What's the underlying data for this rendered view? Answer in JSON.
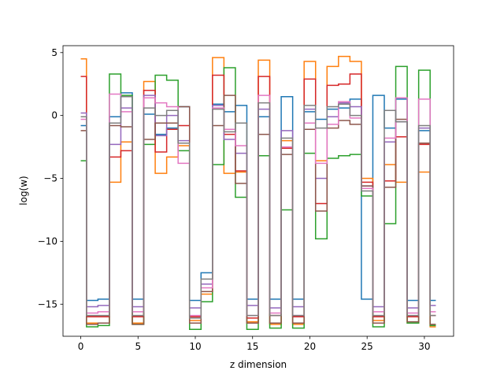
{
  "chart_data": {
    "type": "line",
    "step": "mid",
    "xlabel": "z dimension",
    "ylabel": "log(w)",
    "xlim": [
      -1.55,
      32.55
    ],
    "ylim": [
      -17.55,
      5.55
    ],
    "xticks": [
      0,
      5,
      10,
      15,
      20,
      25,
      30
    ],
    "yticks": [
      5,
      0,
      -5,
      -10,
      -15
    ],
    "ytick_labels": [
      "5",
      "0",
      "−5",
      "−10",
      "−15"
    ],
    "grid": false,
    "legend": "none",
    "x": [
      0,
      1,
      2,
      3,
      4,
      5,
      6,
      7,
      8,
      9,
      10,
      11,
      12,
      13,
      14,
      15,
      16,
      17,
      18,
      19,
      20,
      21,
      22,
      23,
      24,
      25,
      26,
      27,
      28,
      29,
      30,
      31
    ],
    "series": [
      {
        "color": "#1f77b4",
        "values": [
          -0.8,
          -14.7,
          -14.6,
          -0.1,
          1.8,
          -14.6,
          0.1,
          -1.5,
          -1.0,
          0.7,
          -14.7,
          -12.5,
          0.9,
          0.3,
          0.8,
          -14.6,
          -0.1,
          -14.6,
          1.5,
          -14.6,
          0.3,
          -0.3,
          0.5,
          0.6,
          1.3,
          -14.6,
          1.6,
          -1.0,
          1.3,
          -14.7,
          -1.2,
          -14.7
        ]
      },
      {
        "color": "#ff7f0e",
        "values": [
          4.5,
          -16.5,
          -16.5,
          -5.3,
          -2.1,
          -16.5,
          2.7,
          -4.6,
          -3.3,
          -2.4,
          -16.3,
          -14.2,
          4.6,
          -4.6,
          -4.5,
          -16.4,
          4.4,
          -16.6,
          -2.0,
          -16.6,
          4.3,
          -3.6,
          3.9,
          4.7,
          4.3,
          -5.0,
          -16.3,
          -3.9,
          -5.3,
          -16.5,
          -4.5,
          -16.8
        ]
      },
      {
        "color": "#2ca02c",
        "values": [
          -3.6,
          -16.8,
          -16.7,
          3.3,
          1.6,
          -16.6,
          -2.3,
          3.2,
          2.8,
          -2.8,
          -17.0,
          -14.8,
          -3.9,
          3.8,
          -6.5,
          -17.0,
          -3.2,
          -16.9,
          -7.5,
          -16.9,
          -3.0,
          -9.8,
          -3.4,
          -3.2,
          -3.1,
          -6.4,
          -16.8,
          -8.6,
          3.9,
          -16.5,
          3.6,
          -16.7
        ]
      },
      {
        "color": "#d62728",
        "values": [
          3.1,
          -16.0,
          -16.0,
          -3.3,
          -2.8,
          -16.0,
          2.0,
          -2.9,
          -1.1,
          -0.8,
          -16.0,
          -14.0,
          3.2,
          -1.5,
          -4.4,
          -16.1,
          3.1,
          -15.9,
          -2.6,
          -16.0,
          2.9,
          -7.0,
          2.4,
          2.5,
          3.3,
          -5.3,
          -16.0,
          -5.2,
          -1.7,
          -16.0,
          -2.3,
          -15.9
        ]
      },
      {
        "color": "#9467bd",
        "values": [
          0.2,
          -15.2,
          -15.1,
          -2.3,
          0.6,
          -15.2,
          1.6,
          -1.6,
          0.0,
          -2.0,
          -15.3,
          -13.4,
          0.8,
          -1.9,
          -3.0,
          -15.1,
          0.5,
          -15.3,
          -1.2,
          -15.2,
          0.5,
          -5.0,
          -0.1,
          1.0,
          0.7,
          -5.6,
          -15.2,
          -2.1,
          -0.5,
          -15.3,
          -1.0,
          -15.1
        ]
      },
      {
        "color": "#8c564b",
        "values": [
          -1.2,
          -16.6,
          -16.5,
          -0.8,
          -0.9,
          -16.6,
          -1.9,
          -0.6,
          -0.6,
          0.7,
          -16.5,
          -14.0,
          -0.8,
          1.6,
          -5.4,
          -16.5,
          -1.5,
          -16.5,
          -3.1,
          -16.5,
          -1.1,
          -7.6,
          -1.0,
          -0.4,
          -0.7,
          -5.6,
          -16.5,
          -5.7,
          -0.3,
          -16.4,
          -2.2,
          -16.6
        ]
      },
      {
        "color": "#e377c2",
        "values": [
          -0.3,
          -15.7,
          -15.6,
          1.7,
          0.3,
          -15.6,
          1.4,
          1.0,
          0.7,
          -3.8,
          -15.9,
          -13.7,
          0.6,
          -1.1,
          -2.4,
          -15.9,
          1.6,
          -15.7,
          -2.5,
          -15.9,
          -0.6,
          -3.8,
          -0.7,
          1.1,
          -0.2,
          -5.8,
          -15.6,
          -1.8,
          1.4,
          -15.7,
          1.3,
          -15.6
        ]
      },
      {
        "color": "#7f7f7f",
        "values": [
          -0.1,
          -15.9,
          -15.9,
          -0.6,
          1.5,
          -15.9,
          0.6,
          0.0,
          0.4,
          -2.2,
          -16.1,
          -13.0,
          0.5,
          -1.3,
          -0.6,
          -15.9,
          1.0,
          -15.9,
          -1.8,
          -15.9,
          0.8,
          -1.0,
          0.7,
          0.9,
          0.0,
          -6.0,
          -15.9,
          0.4,
          -0.5,
          -15.9,
          -0.8,
          -15.9
        ]
      }
    ]
  }
}
